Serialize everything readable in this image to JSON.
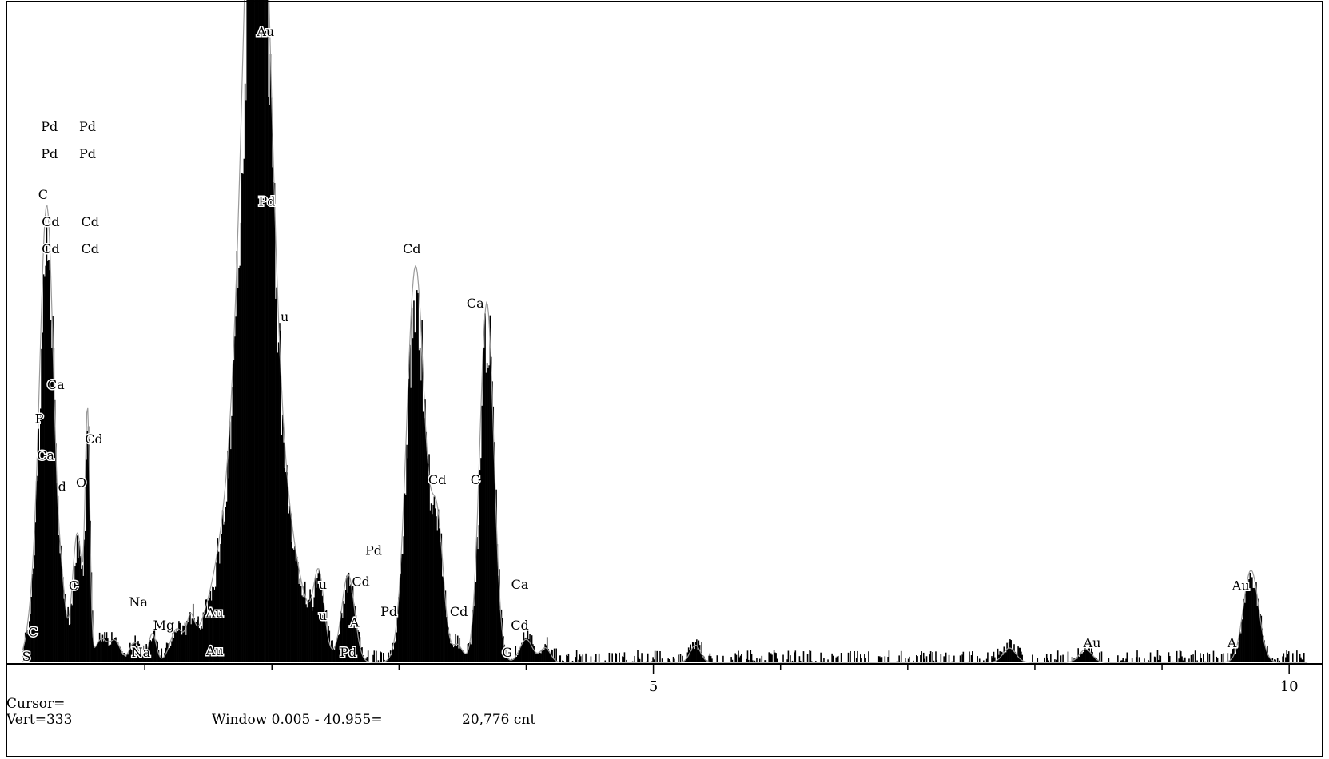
{
  "chart_data": {
    "type": "area",
    "x_ticks": [
      "5",
      "10"
    ],
    "xlim": [
      0,
      10.2
    ],
    "grid": false,
    "cursor_text": "Cursor=",
    "vert_text": "Vert=333",
    "window_text": "Window 0.005 - 40.955=",
    "count_text": "20,776 cnt",
    "colors": {
      "fill": "#000000",
      "outline": "#9a9a9a",
      "frame": "#000000",
      "background": "#ffffff"
    },
    "peaks": [
      {
        "x": 0.12,
        "h": 28,
        "w": 0.05
      },
      {
        "x": 0.23,
        "h": 315,
        "w": 0.055
      },
      {
        "x": 0.35,
        "h": 35,
        "w": 0.03
      },
      {
        "x": 0.47,
        "h": 90,
        "w": 0.04
      },
      {
        "x": 0.55,
        "h": 165,
        "w": 0.018
      },
      {
        "x": 0.66,
        "h": 16,
        "w": 0.05
      },
      {
        "x": 0.77,
        "h": 14,
        "w": 0.04
      },
      {
        "x": 0.92,
        "h": 14,
        "w": 0.04
      },
      {
        "x": 1.06,
        "h": 20,
        "w": 0.03
      },
      {
        "x": 1.25,
        "h": 20,
        "w": 0.05
      },
      {
        "x": 1.36,
        "h": 20,
        "w": 0.03
      },
      {
        "x": 1.88,
        "h": 470,
        "w": 0.095
      },
      {
        "x": 1.88,
        "h": 200,
        "w": 0.22
      },
      {
        "x": 2.37,
        "h": 48,
        "w": 0.04
      },
      {
        "x": 2.6,
        "h": 60,
        "w": 0.05
      },
      {
        "x": 3.13,
        "h": 275,
        "w": 0.07
      },
      {
        "x": 3.3,
        "h": 95,
        "w": 0.05
      },
      {
        "x": 3.46,
        "h": 12,
        "w": 0.04
      },
      {
        "x": 3.69,
        "h": 250,
        "w": 0.055
      },
      {
        "x": 4.0,
        "h": 16,
        "w": 0.05
      },
      {
        "x": 4.15,
        "h": 10,
        "w": 0.04
      },
      {
        "x": 5.33,
        "h": 12,
        "w": 0.04
      },
      {
        "x": 7.8,
        "h": 10,
        "w": 0.05
      },
      {
        "x": 8.4,
        "h": 9,
        "w": 0.05
      },
      {
        "x": 9.7,
        "h": 64,
        "w": 0.06
      }
    ],
    "peak_labels": [
      {
        "text": "Au",
        "x": 1.95,
        "y": 460
      },
      {
        "text": "Pd",
        "x": 1.96,
        "y": 335
      },
      {
        "text": "u",
        "x": 2.1,
        "y": 250
      },
      {
        "text": "Pd",
        "x": 0.25,
        "y": 390
      },
      {
        "text": "Pd",
        "x": 0.55,
        "y": 390
      },
      {
        "text": "Pd",
        "x": 0.25,
        "y": 370
      },
      {
        "text": "Pd",
        "x": 0.55,
        "y": 370
      },
      {
        "text": "C",
        "x": 0.2,
        "y": 340
      },
      {
        "text": "Cd",
        "x": 0.26,
        "y": 320
      },
      {
        "text": "Cd",
        "x": 0.57,
        "y": 320
      },
      {
        "text": "Cd",
        "x": 0.26,
        "y": 300
      },
      {
        "text": "Cd",
        "x": 0.57,
        "y": 300
      },
      {
        "text": "Ca",
        "x": 0.3,
        "y": 200
      },
      {
        "text": "P",
        "x": 0.17,
        "y": 175
      },
      {
        "text": "Cd",
        "x": 0.6,
        "y": 160
      },
      {
        "text": "Ca",
        "x": 0.22,
        "y": 148
      },
      {
        "text": "d",
        "x": 0.35,
        "y": 125
      },
      {
        "text": "O",
        "x": 0.5,
        "y": 128
      },
      {
        "text": "C",
        "x": 0.44,
        "y": 52
      },
      {
        "text": "C",
        "x": 0.12,
        "y": 18
      },
      {
        "text": "S",
        "x": 0.07,
        "y": 0
      },
      {
        "text": "Na",
        "x": 0.95,
        "y": 40
      },
      {
        "text": "Mg",
        "x": 1.15,
        "y": 23
      },
      {
        "text": "Au",
        "x": 1.55,
        "y": 32
      },
      {
        "text": "Na",
        "x": 0.97,
        "y": 3
      },
      {
        "text": "Au",
        "x": 1.55,
        "y": 4
      },
      {
        "text": "Cd",
        "x": 3.1,
        "y": 300
      },
      {
        "text": "Ca",
        "x": 3.6,
        "y": 260
      },
      {
        "text": "Cd",
        "x": 3.3,
        "y": 130
      },
      {
        "text": "C",
        "x": 3.6,
        "y": 130
      },
      {
        "text": "Pd",
        "x": 2.8,
        "y": 78
      },
      {
        "text": "Cd",
        "x": 2.7,
        "y": 55
      },
      {
        "text": "Ca",
        "x": 3.95,
        "y": 53
      },
      {
        "text": "A",
        "x": 2.65,
        "y": 25
      },
      {
        "text": "Pd",
        "x": 2.92,
        "y": 33
      },
      {
        "text": "Cd",
        "x": 3.47,
        "y": 33
      },
      {
        "text": "Cd",
        "x": 3.95,
        "y": 23
      },
      {
        "text": "u",
        "x": 2.4,
        "y": 53
      },
      {
        "text": "u",
        "x": 2.4,
        "y": 30
      },
      {
        "text": "Pd",
        "x": 2.6,
        "y": 3
      },
      {
        "text": "G",
        "x": 3.85,
        "y": 3
      },
      {
        "text": "Au",
        "x": 9.62,
        "y": 52
      },
      {
        "text": "Au",
        "x": 8.45,
        "y": 10
      },
      {
        "text": "A",
        "x": 9.55,
        "y": 10
      }
    ]
  }
}
